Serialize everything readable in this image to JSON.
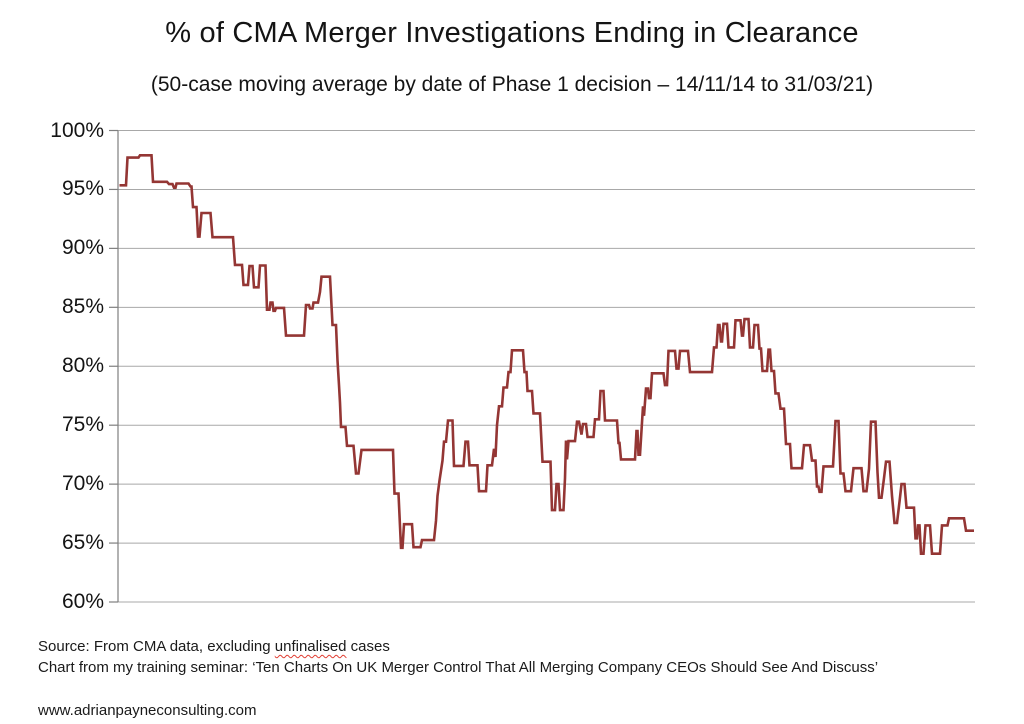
{
  "chart_data": {
    "type": "line",
    "title": "% of CMA Merger Investigations Ending in Clearance",
    "subtitle": "(50-case moving average by date of Phase 1 decision – 14/11/14 to 31/03/21)",
    "legend": null,
    "grid": true,
    "line_color": "#943634",
    "gridline_color": "#a8a8a8",
    "axis_color": "#7f7f7f",
    "y_axis": {
      "min": 60,
      "max": 100,
      "tick_step": 5,
      "tick_values": [
        100,
        95,
        90,
        85,
        80,
        75,
        70,
        65,
        60
      ],
      "tick_labels": [
        "100%",
        "95%",
        "90%",
        "85%",
        "80%",
        "75%",
        "70%",
        "65%",
        "60%"
      ]
    },
    "x_axis": {
      "tick_labels": [],
      "note": "time axis unlabeled; cases ordered by date of Phase 1 decision, 14/11/14 to 31/03/21"
    },
    "series": [
      {
        "name": "% of CMA merger investigations ending in clearance (50-case moving average)",
        "x_unit": "horizontal pixel position (no x tick labels shown in chart)",
        "y_unit": "percent",
        "points": [
          [
            119.5,
            95.35
          ],
          [
            126,
            95.35
          ],
          [
            127.5,
            97.7
          ],
          [
            138.5,
            97.7
          ],
          [
            140,
            97.9
          ],
          [
            151.5,
            97.9
          ],
          [
            153,
            95.65
          ],
          [
            167,
            95.65
          ],
          [
            169,
            95.45
          ],
          [
            172.5,
            95.45
          ],
          [
            174,
            95.15
          ],
          [
            175.5,
            95.15
          ],
          [
            176.5,
            95.5
          ],
          [
            188.5,
            95.5
          ],
          [
            190.5,
            95.25
          ],
          [
            191.5,
            95.25
          ],
          [
            193,
            93.5
          ],
          [
            196.5,
            93.5
          ],
          [
            198,
            91
          ],
          [
            199.5,
            91
          ],
          [
            201.5,
            93
          ],
          [
            210.5,
            93
          ],
          [
            212.5,
            90.95
          ],
          [
            233,
            90.95
          ],
          [
            235,
            88.6
          ],
          [
            242,
            88.6
          ],
          [
            243.5,
            86.9
          ],
          [
            248,
            86.9
          ],
          [
            249.5,
            88.5
          ],
          [
            252.5,
            88.5
          ],
          [
            254,
            86.7
          ],
          [
            258.5,
            86.7
          ],
          [
            260,
            88.55
          ],
          [
            265.5,
            88.55
          ],
          [
            267,
            84.8
          ],
          [
            269.5,
            84.8
          ],
          [
            270.5,
            85.4
          ],
          [
            272.5,
            85.4
          ],
          [
            273.5,
            84.7
          ],
          [
            275,
            84.7
          ],
          [
            276,
            84.95
          ],
          [
            284,
            84.95
          ],
          [
            286,
            82.6
          ],
          [
            304,
            82.6
          ],
          [
            306,
            85.2
          ],
          [
            309,
            85.2
          ],
          [
            310,
            84.9
          ],
          [
            312.5,
            84.9
          ],
          [
            313.5,
            85.4
          ],
          [
            318,
            85.4
          ],
          [
            320,
            86.3
          ],
          [
            321.5,
            87.6
          ],
          [
            330,
            87.6
          ],
          [
            332.5,
            83.5
          ],
          [
            336,
            83.5
          ],
          [
            337.5,
            80.5
          ],
          [
            339,
            78.4
          ],
          [
            340,
            76.9
          ],
          [
            341,
            74.85
          ],
          [
            345.5,
            74.85
          ],
          [
            347,
            73.25
          ],
          [
            353.5,
            73.25
          ],
          [
            356,
            70.9
          ],
          [
            358.5,
            70.9
          ],
          [
            361.5,
            72.9
          ],
          [
            393,
            72.9
          ],
          [
            394.5,
            69.2
          ],
          [
            398.5,
            69.2
          ],
          [
            401,
            64.6
          ],
          [
            402.5,
            64.6
          ],
          [
            404,
            66.6
          ],
          [
            412,
            66.6
          ],
          [
            413.5,
            64.65
          ],
          [
            420.5,
            64.65
          ],
          [
            422,
            65.25
          ],
          [
            434,
            65.25
          ],
          [
            436,
            66.9
          ],
          [
            437.5,
            69
          ],
          [
            439.5,
            70.3
          ],
          [
            442.5,
            72
          ],
          [
            444,
            73.6
          ],
          [
            446,
            73.6
          ],
          [
            448,
            75.4
          ],
          [
            452.5,
            75.4
          ],
          [
            454,
            71.55
          ],
          [
            463.5,
            71.55
          ],
          [
            465.5,
            73.6
          ],
          [
            468,
            73.6
          ],
          [
            469.5,
            71.6
          ],
          [
            477.5,
            71.6
          ],
          [
            479,
            69.4
          ],
          [
            486,
            69.4
          ],
          [
            487.5,
            71.6
          ],
          [
            492,
            71.6
          ],
          [
            494,
            73
          ],
          [
            495.5,
            72.3
          ],
          [
            497,
            75
          ],
          [
            499,
            76.6
          ],
          [
            502,
            76.6
          ],
          [
            503.5,
            78.2
          ],
          [
            507,
            78.2
          ],
          [
            508.5,
            79.5
          ],
          [
            510.5,
            79.5
          ],
          [
            512,
            81.35
          ],
          [
            523,
            81.35
          ],
          [
            524.5,
            79.5
          ],
          [
            526.5,
            79.5
          ],
          [
            527.5,
            77.9
          ],
          [
            532,
            77.9
          ],
          [
            533.5,
            76
          ],
          [
            540,
            76
          ],
          [
            542.5,
            71.9
          ],
          [
            550.5,
            71.9
          ],
          [
            552,
            67.8
          ],
          [
            555,
            67.8
          ],
          [
            556.5,
            70
          ],
          [
            558.5,
            70
          ],
          [
            560,
            67.8
          ],
          [
            563.5,
            67.8
          ],
          [
            565,
            70.5
          ],
          [
            566,
            73.7
          ],
          [
            567,
            72.1
          ],
          [
            568.5,
            73.65
          ],
          [
            575,
            73.65
          ],
          [
            577,
            75.3
          ],
          [
            579,
            75.3
          ],
          [
            581.5,
            74.2
          ],
          [
            583,
            75.1
          ],
          [
            586,
            75.1
          ],
          [
            587.5,
            74
          ],
          [
            593.5,
            74
          ],
          [
            595,
            75.5
          ],
          [
            599,
            75.5
          ],
          [
            600.5,
            77.9
          ],
          [
            603.5,
            77.9
          ],
          [
            605,
            75.4
          ],
          [
            617,
            75.4
          ],
          [
            618.5,
            73.5
          ],
          [
            619.5,
            73.5
          ],
          [
            621,
            72.1
          ],
          [
            635,
            72.1
          ],
          [
            636.5,
            74.5
          ],
          [
            637.5,
            74.5
          ],
          [
            638.5,
            72.5
          ],
          [
            640,
            72.5
          ],
          [
            643,
            76.6
          ],
          [
            644,
            75.8
          ],
          [
            646,
            78.1
          ],
          [
            648,
            78.1
          ],
          [
            649,
            77.3
          ],
          [
            650.5,
            77.3
          ],
          [
            652,
            79.4
          ],
          [
            663.5,
            79.4
          ],
          [
            665,
            78.4
          ],
          [
            667,
            78.4
          ],
          [
            668.5,
            81.3
          ],
          [
            675,
            81.3
          ],
          [
            676.5,
            79.8
          ],
          [
            678.5,
            79.8
          ],
          [
            680,
            81.3
          ],
          [
            688,
            81.3
          ],
          [
            690,
            79.5
          ],
          [
            712,
            79.5
          ],
          [
            714,
            81.6
          ],
          [
            716.5,
            81.6
          ],
          [
            718,
            83.5
          ],
          [
            719.5,
            83.5
          ],
          [
            721,
            82.1
          ],
          [
            722,
            82.1
          ],
          [
            723.5,
            83.6
          ],
          [
            727,
            83.6
          ],
          [
            728.5,
            81.6
          ],
          [
            734,
            81.6
          ],
          [
            735.5,
            83.9
          ],
          [
            740.5,
            83.9
          ],
          [
            742,
            82.6
          ],
          [
            743,
            82.6
          ],
          [
            744.5,
            84
          ],
          [
            748.5,
            84
          ],
          [
            750,
            81.6
          ],
          [
            753,
            81.6
          ],
          [
            754.5,
            83.5
          ],
          [
            758,
            83.5
          ],
          [
            759.5,
            81.5
          ],
          [
            761,
            81.5
          ],
          [
            762.5,
            79.6
          ],
          [
            767,
            79.6
          ],
          [
            768.5,
            81.4
          ],
          [
            770,
            81.4
          ],
          [
            771.5,
            79.6
          ],
          [
            774,
            79.6
          ],
          [
            775.5,
            77.7
          ],
          [
            778.5,
            77.7
          ],
          [
            780.5,
            76.4
          ],
          [
            784,
            76.4
          ],
          [
            786,
            73.4
          ],
          [
            790,
            73.4
          ],
          [
            791.5,
            71.35
          ],
          [
            802,
            71.35
          ],
          [
            804,
            73.3
          ],
          [
            810,
            73.3
          ],
          [
            812,
            72
          ],
          [
            815.5,
            72
          ],
          [
            817,
            69.8
          ],
          [
            818.5,
            69.8
          ],
          [
            819.5,
            69.35
          ],
          [
            821.5,
            69.35
          ],
          [
            823.5,
            71.5
          ],
          [
            833,
            71.5
          ],
          [
            835.5,
            75.35
          ],
          [
            838.5,
            75.35
          ],
          [
            840.5,
            70.9
          ],
          [
            843.5,
            70.9
          ],
          [
            845.5,
            69.4
          ],
          [
            851,
            69.4
          ],
          [
            853.5,
            71.35
          ],
          [
            861.5,
            71.35
          ],
          [
            863.5,
            69.4
          ],
          [
            866.5,
            69.4
          ],
          [
            869,
            71.3
          ],
          [
            871,
            75.3
          ],
          [
            875.5,
            75.3
          ],
          [
            877.5,
            71
          ],
          [
            879,
            68.85
          ],
          [
            881.5,
            68.85
          ],
          [
            884,
            70.5
          ],
          [
            886,
            71.9
          ],
          [
            889.5,
            71.9
          ],
          [
            892,
            69
          ],
          [
            894.5,
            66.7
          ],
          [
            897,
            66.7
          ],
          [
            899.5,
            68.5
          ],
          [
            901.5,
            70
          ],
          [
            904.5,
            70
          ],
          [
            906.5,
            68
          ],
          [
            914,
            68
          ],
          [
            915.5,
            65.4
          ],
          [
            917,
            65.4
          ],
          [
            918,
            66.5
          ],
          [
            919.5,
            66.5
          ],
          [
            921,
            64.1
          ],
          [
            923.5,
            64.1
          ],
          [
            925.5,
            66.5
          ],
          [
            930,
            66.5
          ],
          [
            932,
            64.1
          ],
          [
            940,
            64.1
          ],
          [
            942,
            66.5
          ],
          [
            947.5,
            66.5
          ],
          [
            949,
            67.1
          ],
          [
            964,
            67.1
          ],
          [
            966,
            66.05
          ],
          [
            974,
            66.05
          ]
        ]
      }
    ]
  },
  "notes": {
    "source_prefix": "Source: From CMA data, excluding ",
    "source_misspelled_word": "unfinalised",
    "source_suffix": " cases",
    "seminar_line": "Chart from my training seminar: ‘Ten Charts On UK Merger Control That All Merging Company CEOs Should See And Discuss’",
    "website": "www.adrianpayneconsulting.com"
  }
}
